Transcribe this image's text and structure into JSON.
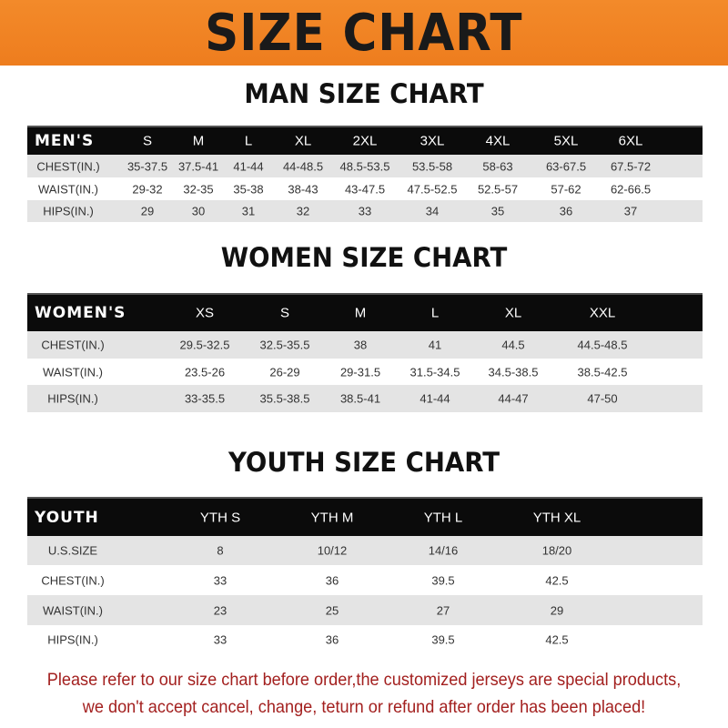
{
  "banner_title": "SIZE CHART",
  "tables": [
    {
      "title": "MAN SIZE CHART",
      "header": [
        "MEN'S",
        "S",
        "M",
        "L",
        "XL",
        "2XL",
        "3XL",
        "4XL",
        "5XL",
        "6XL"
      ],
      "rows": [
        [
          "CHEST(IN.)",
          "35-37.5",
          "37.5-41",
          "41-44",
          "44-48.5",
          "48.5-53.5",
          "53.5-58",
          "58-63",
          "63-67.5",
          "67.5-72"
        ],
        [
          "WAIST(IN.)",
          "29-32",
          "32-35",
          "35-38",
          "38-43",
          "43-47.5",
          "47.5-52.5",
          "52.5-57",
          "57-62",
          "62-66.5"
        ],
        [
          "HIPS(IN.)",
          "29",
          "30",
          "31",
          "32",
          "33",
          "34",
          "35",
          "36",
          "37"
        ]
      ]
    },
    {
      "title": "WOMEN SIZE CHART",
      "header": [
        "WOMEN'S",
        "XS",
        "S",
        "M",
        "L",
        "XL",
        "XXL"
      ],
      "rows": [
        [
          "CHEST(IN.)",
          "29.5-32.5",
          "32.5-35.5",
          "38",
          "41",
          "44.5",
          "44.5-48.5"
        ],
        [
          "WAIST(IN.)",
          "23.5-26",
          "26-29",
          "29-31.5",
          "31.5-34.5",
          "34.5-38.5",
          "38.5-42.5"
        ],
        [
          "HIPS(IN.)",
          "33-35.5",
          "35.5-38.5",
          "38.5-41",
          "41-44",
          "44-47",
          "47-50"
        ]
      ]
    },
    {
      "title": "YOUTH SIZE CHART",
      "header": [
        "YOUTH",
        "YTH S",
        "YTH M",
        "YTH L",
        "YTH XL"
      ],
      "rows": [
        [
          "U.S.SIZE",
          "8",
          "10/12",
          "14/16",
          "18/20"
        ],
        [
          "CHEST(IN.)",
          "33",
          "36",
          "39.5",
          "42.5"
        ],
        [
          "WAIST(IN.)",
          "23",
          "25",
          "27",
          "29"
        ],
        [
          "HIPS(IN.)",
          "33",
          "36",
          "39.5",
          "42.5"
        ]
      ]
    }
  ],
  "notice": [
    "Please refer to our size chart before order,the customized jerseys are special products,",
    "we don't accept cancel, change, teturn or refund after order has been placed!"
  ],
  "colors": {
    "banner": "#ef8222",
    "header_row": "#0b0b0b",
    "stripe": "#e4e4e4",
    "notice": "#a3201f"
  }
}
